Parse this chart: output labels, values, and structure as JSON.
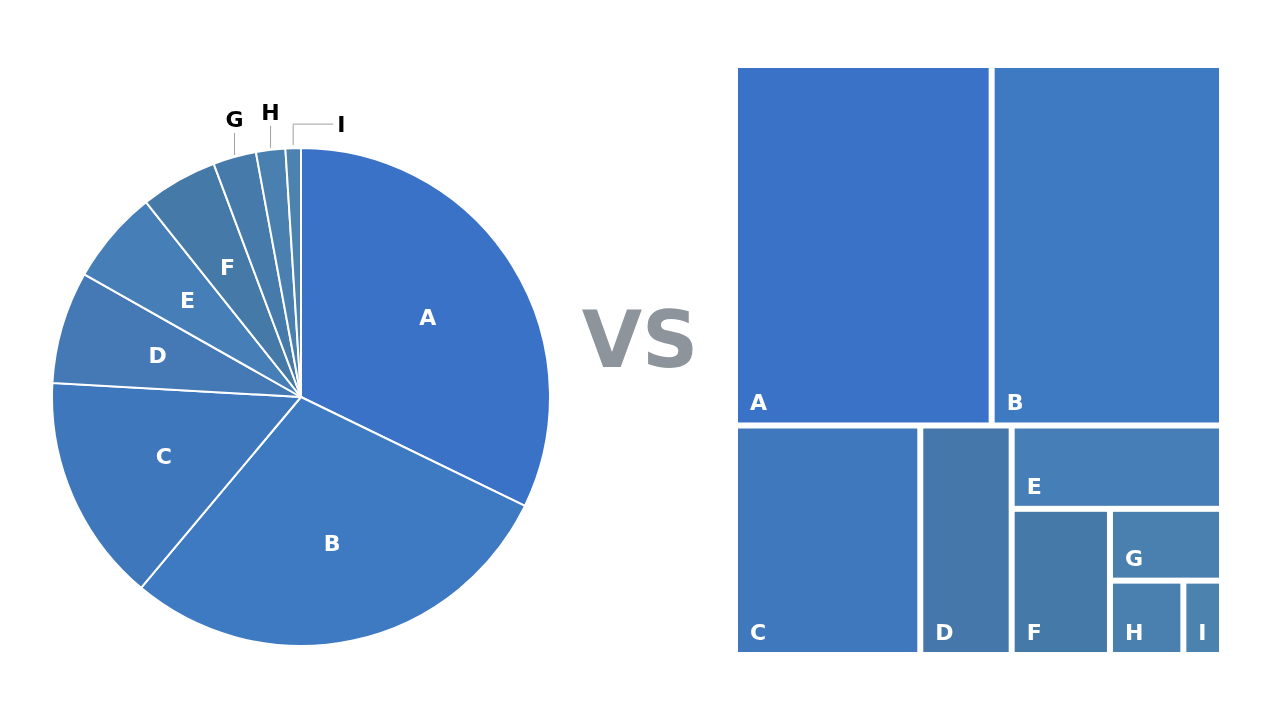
{
  "chart_data": [
    {
      "type": "pie",
      "categories": [
        "A",
        "B",
        "C",
        "D",
        "E",
        "F",
        "G",
        "H",
        "I"
      ],
      "values": [
        32.2,
        28.9,
        14.8,
        7.3,
        6.1,
        5.0,
        2.8,
        1.9,
        1.0
      ],
      "colors": [
        "#3a72c8",
        "#3d7ac2",
        "#3f77bc",
        "#4479b5",
        "#467fb7",
        "#4579a8",
        "#457aab",
        "#4a80b0",
        "#4c82ae"
      ]
    },
    {
      "type": "other",
      "annotations": [
        "VS"
      ],
      "categories": [
        "A",
        "B",
        "C",
        "D",
        "E",
        "F",
        "G",
        "H",
        "I"
      ],
      "colors": [
        "#3a72c8",
        "#3d7ac2",
        "#4078bd",
        "#4577aa",
        "#467fb7",
        "#4579a8",
        "#4a80b0",
        "#4a80b0",
        "#4c82ae"
      ]
    }
  ]
}
